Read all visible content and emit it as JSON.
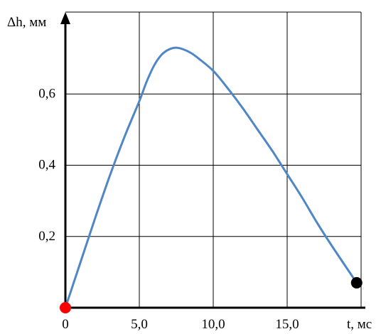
{
  "chart_data": {
    "type": "line",
    "title": "",
    "xlabel": "t, мс",
    "ylabel": "Δh, мм",
    "xlim": [
      0,
      20
    ],
    "ylim": [
      0,
      0.83
    ],
    "x_ticks": [
      {
        "value": 0,
        "label": "0"
      },
      {
        "value": 5,
        "label": "5,0"
      },
      {
        "value": 10,
        "label": "10,0"
      },
      {
        "value": 15,
        "label": "15,0"
      }
    ],
    "y_ticks": [
      {
        "value": 0.2,
        "label": "0,2"
      },
      {
        "value": 0.4,
        "label": "0,4"
      },
      {
        "value": 0.6,
        "label": "0,6"
      }
    ],
    "x_grid": [
      5,
      10,
      15,
      20
    ],
    "y_grid": [
      0.2,
      0.4,
      0.6
    ],
    "grid": true,
    "legend": "none",
    "series": [
      {
        "color": "#4f86c6",
        "x": [
          0,
          1,
          2,
          3,
          4,
          5,
          5.5,
          6,
          6.5,
          7,
          7.5,
          8,
          8.5,
          9,
          10,
          11,
          12,
          13,
          14,
          15,
          16,
          17,
          18,
          19.7
        ],
        "y": [
          0,
          0.125,
          0.25,
          0.37,
          0.48,
          0.58,
          0.635,
          0.68,
          0.71,
          0.725,
          0.73,
          0.725,
          0.715,
          0.7,
          0.665,
          0.615,
          0.56,
          0.5,
          0.44,
          0.375,
          0.31,
          0.24,
          0.175,
          0.07
        ]
      }
    ],
    "markers": [
      {
        "x": 0,
        "y": 0,
        "color": "#ff0000"
      },
      {
        "x": 19.7,
        "y": 0.07,
        "color": "#000000"
      }
    ]
  }
}
